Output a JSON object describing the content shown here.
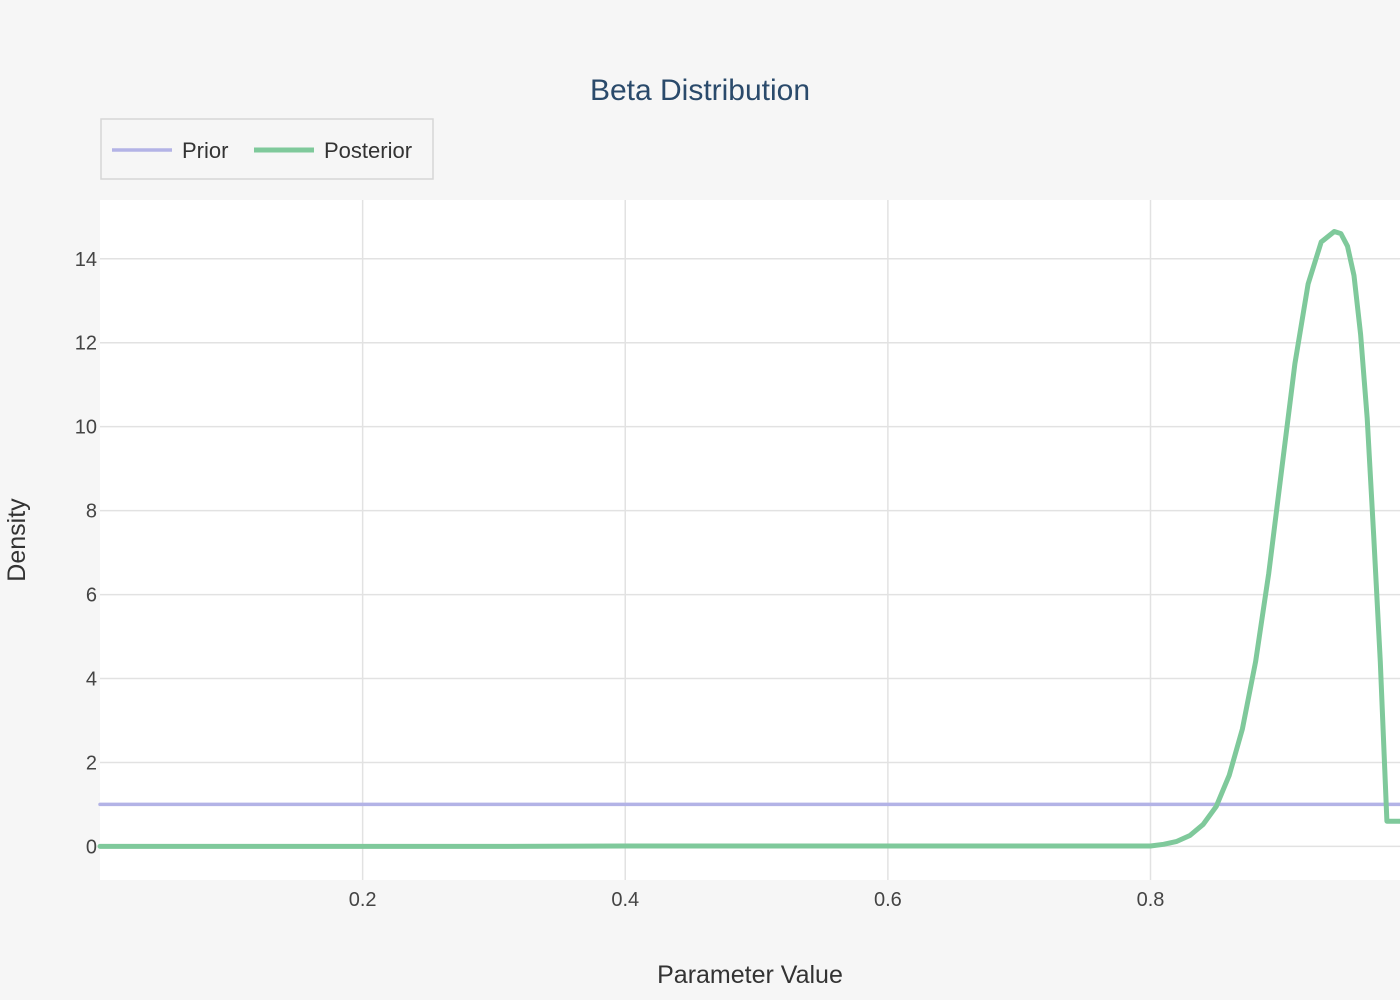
{
  "chart_data": {
    "type": "line",
    "title": "Beta Distribution",
    "xlabel": "Parameter Value",
    "ylabel": "Density",
    "xlim": [
      0,
      0.99
    ],
    "ylim": [
      -0.8,
      15.4
    ],
    "x_ticks": [
      0.2,
      0.4,
      0.6,
      0.8
    ],
    "x_tick_labels": [
      "0.2",
      "0.4",
      "0.6",
      "0.8"
    ],
    "y_ticks": [
      0,
      2,
      4,
      6,
      8,
      10,
      12,
      14
    ],
    "y_tick_labels": [
      "0",
      "2",
      "4",
      "6",
      "8",
      "10",
      "12",
      "14"
    ],
    "grid": true,
    "legend_position": "top-left",
    "series": [
      {
        "name": "Prior",
        "color": "#b3b3e6",
        "x": [
          0,
          0.99
        ],
        "y": [
          1,
          1
        ]
      },
      {
        "name": "Posterior",
        "color": "#7fc99b",
        "x": [
          0,
          0.1,
          0.2,
          0.3,
          0.4,
          0.5,
          0.6,
          0.7,
          0.8,
          0.81,
          0.82,
          0.83,
          0.84,
          0.85,
          0.86,
          0.87,
          0.88,
          0.89,
          0.9,
          0.91,
          0.92,
          0.93,
          0.94,
          0.945,
          0.95,
          0.955,
          0.96,
          0.965,
          0.97,
          0.975,
          0.98,
          0.985,
          0.99
        ],
        "y": [
          0,
          0,
          0,
          0,
          0.01,
          0.01,
          0.01,
          0.01,
          0.01,
          0.05,
          0.12,
          0.26,
          0.52,
          0.95,
          1.7,
          2.8,
          4.4,
          6.5,
          9.0,
          11.5,
          13.4,
          14.4,
          14.65,
          14.6,
          14.3,
          13.6,
          12.2,
          10.2,
          7.4,
          4.4,
          0.6,
          0.6,
          0.6
        ]
      }
    ]
  }
}
